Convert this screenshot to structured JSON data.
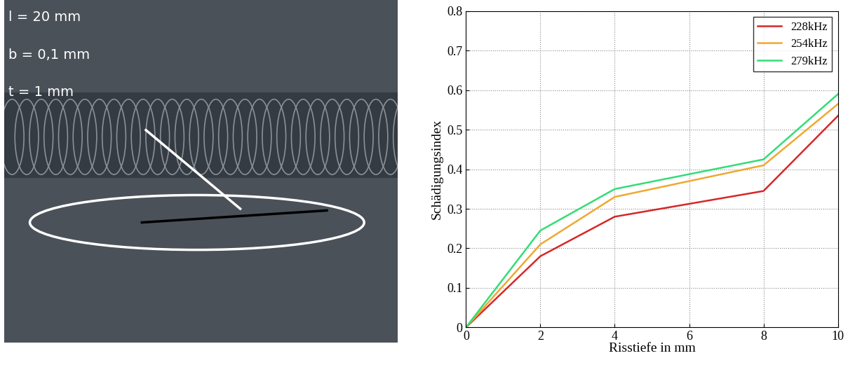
{
  "photo_annotations": [
    "l = 20 mm",
    "b = 0,1 mm",
    "t = 1 mm"
  ],
  "chart_data": {
    "type": "line",
    "x": [
      0,
      2,
      4,
      8,
      10
    ],
    "series": [
      {
        "name": "228kHz",
        "color": "#d62728",
        "values": [
          0,
          0.18,
          0.28,
          0.345,
          0.535
        ]
      },
      {
        "name": "254kHz",
        "color": "#f0a830",
        "values": [
          0,
          0.21,
          0.33,
          0.41,
          0.565
        ]
      },
      {
        "name": "279kHz",
        "color": "#33dd77",
        "values": [
          0,
          0.245,
          0.35,
          0.425,
          0.59
        ]
      }
    ],
    "x_label": "Risstiefe in mm",
    "y_label": "Schädigungsindex",
    "xlim": [
      0,
      10
    ],
    "xticks": [
      0,
      2,
      4,
      6,
      8,
      10
    ],
    "ylim": [
      0,
      0.8
    ],
    "yticks": [
      0,
      0.1,
      0.2,
      0.3,
      0.4,
      0.5,
      0.6,
      0.7,
      0.8
    ],
    "grid": true,
    "legend": "upper right"
  }
}
